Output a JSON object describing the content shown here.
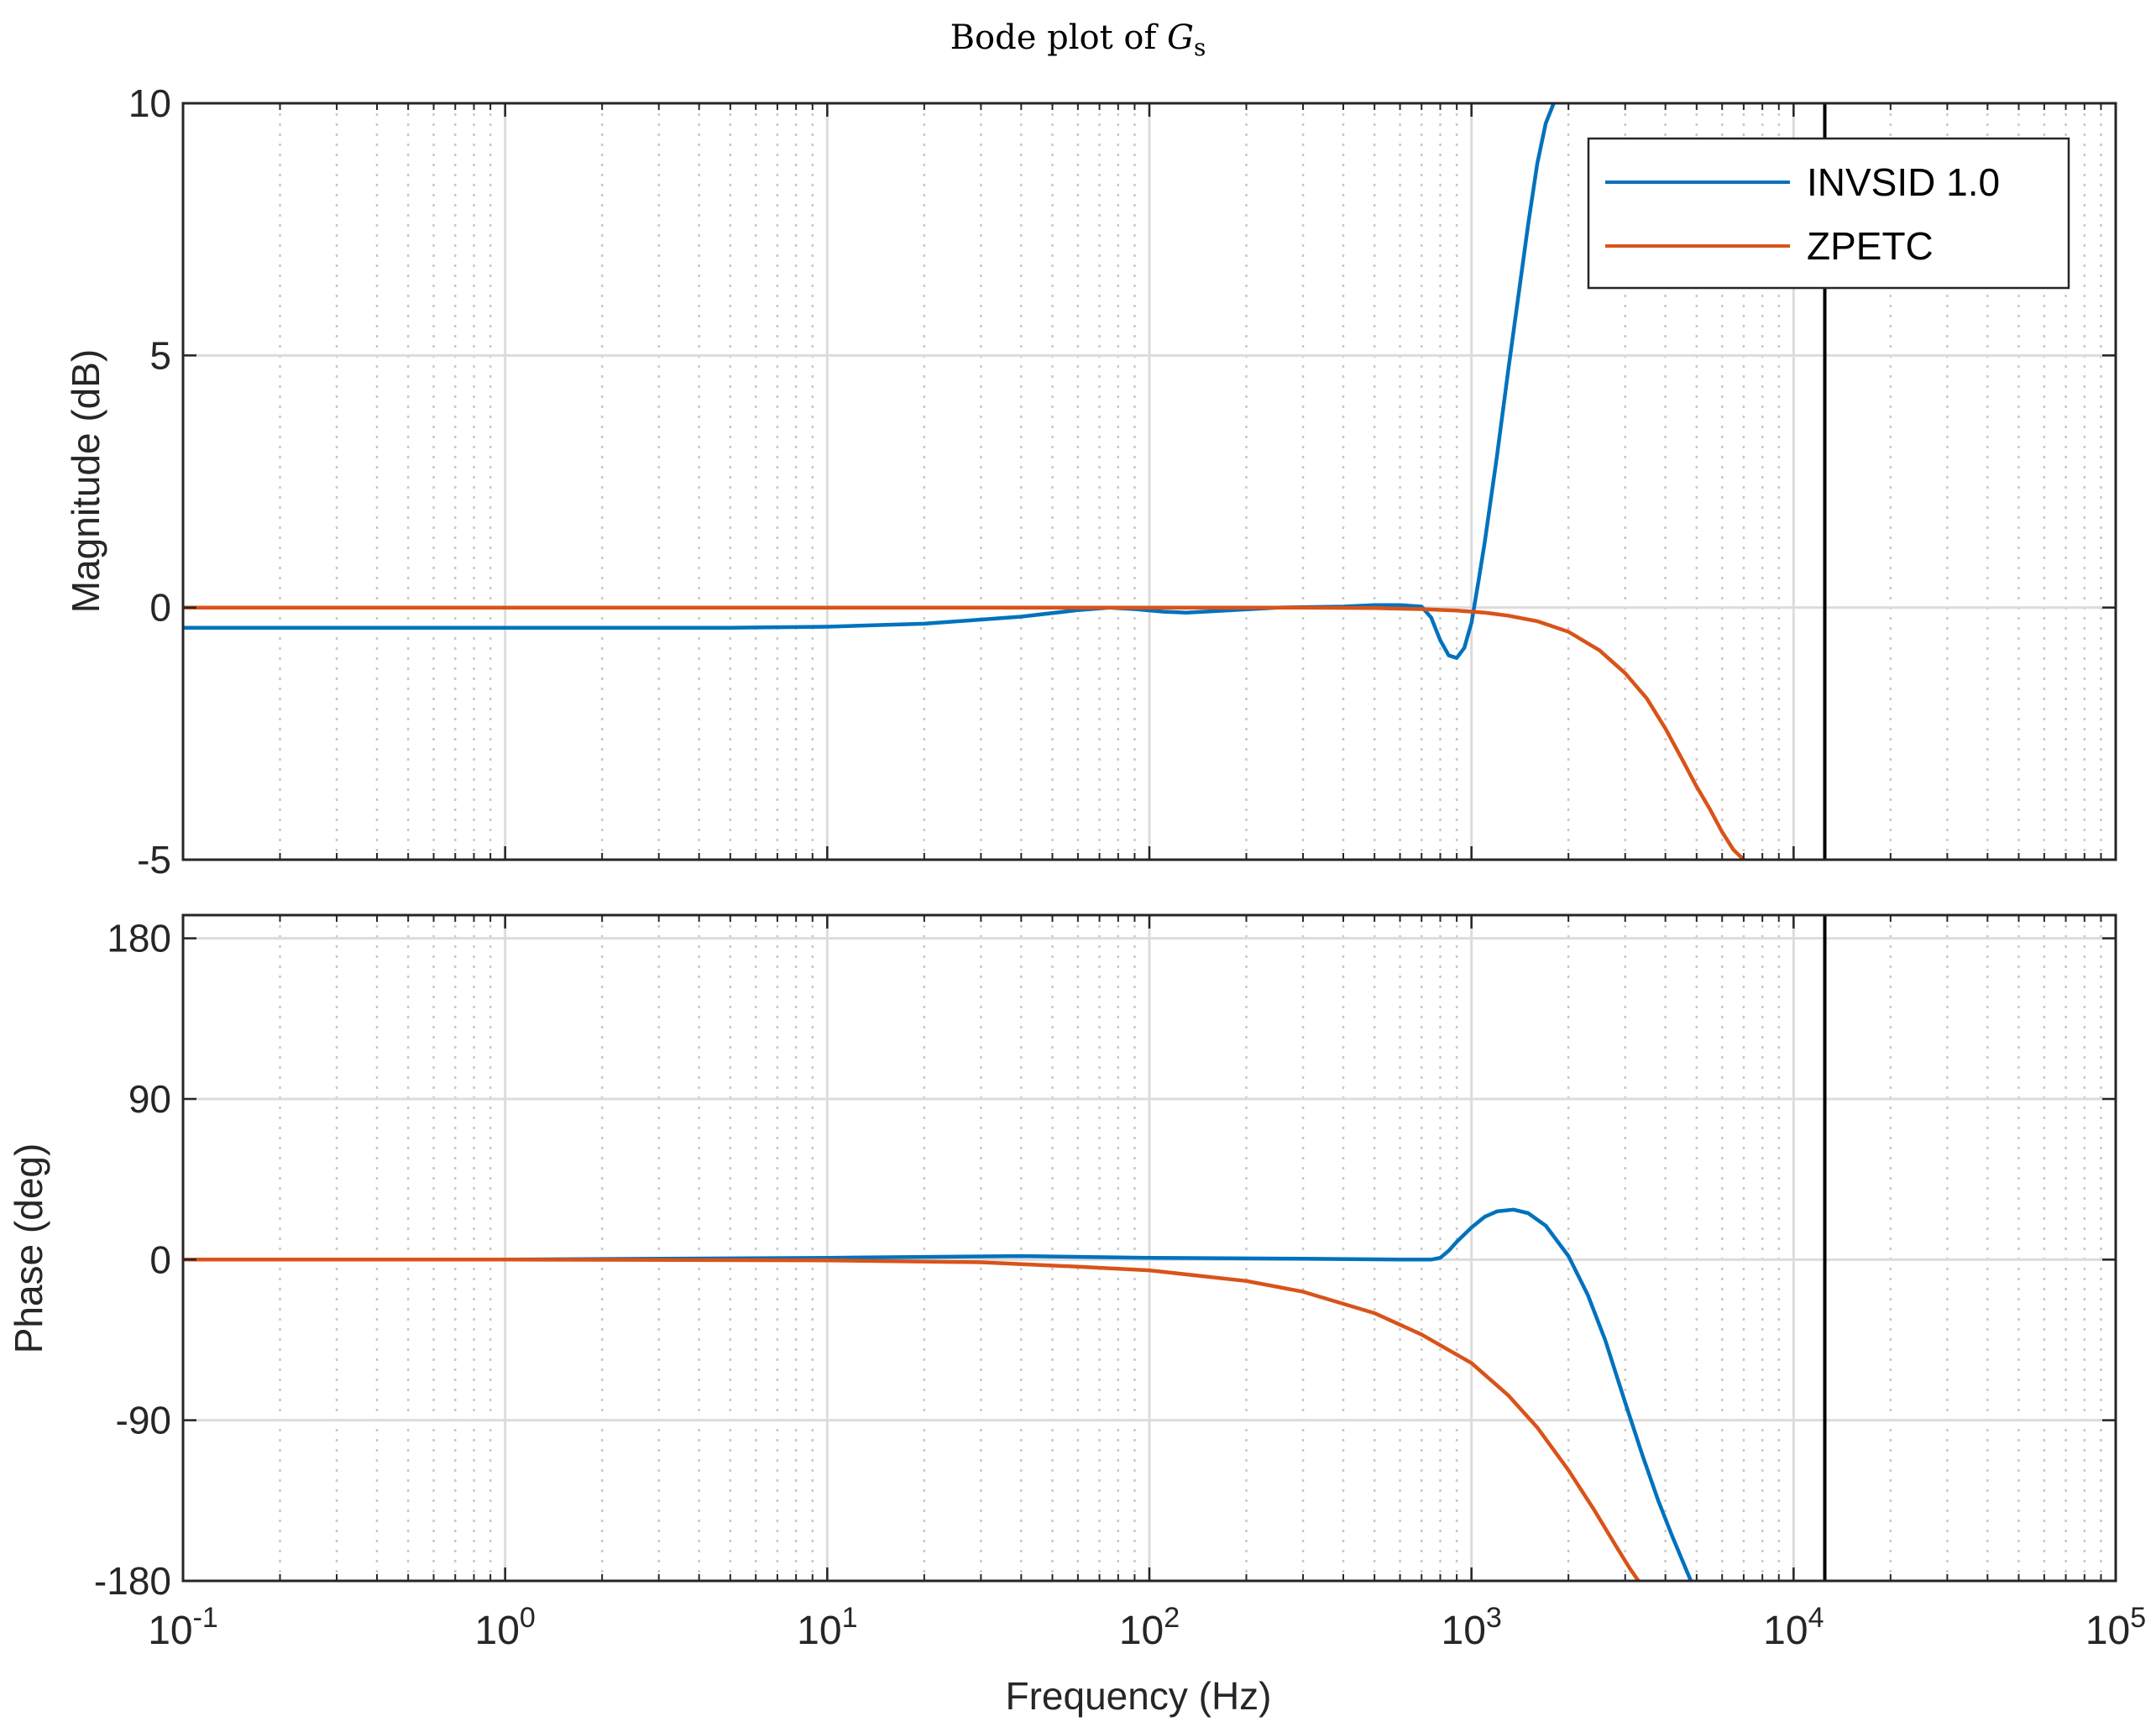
{
  "chart_data": {
    "type": "line",
    "title_prefix": "Bode plot of ",
    "title_symbol": "G",
    "title_subscript": "s",
    "xlabel": "Frequency  (Hz)",
    "xscale": "log",
    "xlim": [
      0.1,
      100000
    ],
    "xticks": [
      {
        "base": "10",
        "exp": "-1"
      },
      {
        "base": "10",
        "exp": "0"
      },
      {
        "base": "10",
        "exp": "1"
      },
      {
        "base": "10",
        "exp": "2"
      },
      {
        "base": "10",
        "exp": "3"
      },
      {
        "base": "10",
        "exp": "4"
      },
      {
        "base": "10",
        "exp": "5"
      }
    ],
    "nyquist_marker_hz": 12500,
    "legend": {
      "location": "top-right",
      "entries": [
        {
          "label": "INVSID 1.0",
          "color": "#0072BD"
        },
        {
          "label": "ZPETC",
          "color": "#D95319"
        }
      ]
    },
    "panels": [
      {
        "name": "magnitude",
        "ylabel": "Magnitude (dB)",
        "ylim": [
          -5,
          10
        ],
        "yticks": [
          -5,
          0,
          5,
          10
        ],
        "ytick_labels": [
          "-5",
          "0",
          "5",
          "10"
        ],
        "series": [
          {
            "name": "INVSID 1.0",
            "color": "#0072BD",
            "x": [
              0.1,
              1,
              5,
              10,
              20,
              40,
              60,
              75,
              90,
              110,
              130,
              160,
              250,
              400,
              500,
              600,
              700,
              750,
              800,
              850,
              900,
              950,
              1000,
              1050,
              1100,
              1200,
              1300,
              1400,
              1500,
              1600,
              1700,
              1800
            ],
            "y": [
              -0.4,
              -0.4,
              -0.4,
              -0.38,
              -0.32,
              -0.18,
              -0.05,
              0.0,
              -0.03,
              -0.08,
              -0.1,
              -0.07,
              0.0,
              0.02,
              0.05,
              0.05,
              0.02,
              -0.2,
              -0.65,
              -0.95,
              -1.0,
              -0.8,
              -0.3,
              0.5,
              1.3,
              3.0,
              4.7,
              6.2,
              7.6,
              8.8,
              9.6,
              10.0
            ]
          },
          {
            "name": "ZPETC",
            "color": "#D95319",
            "x": [
              0.1,
              10,
              100,
              300,
              500,
              700,
              900,
              1100,
              1300,
              1600,
              2000,
              2500,
              3000,
              3500,
              4000,
              4500,
              5000,
              5500,
              6000,
              6500,
              7000
            ],
            "y": [
              0,
              0,
              0,
              0,
              -0.01,
              -0.03,
              -0.06,
              -0.1,
              -0.16,
              -0.27,
              -0.48,
              -0.85,
              -1.3,
              -1.8,
              -2.4,
              -3.0,
              -3.55,
              -4.0,
              -4.45,
              -4.8,
              -5.0
            ]
          }
        ]
      },
      {
        "name": "phase",
        "ylabel": "Phase (deg)",
        "ylim": [
          -180,
          193
        ],
        "yticks": [
          -180,
          -90,
          0,
          90,
          180
        ],
        "ytick_labels": [
          "-180",
          "-90",
          "0",
          "90",
          "180"
        ],
        "series": [
          {
            "name": "INVSID 1.0",
            "color": "#0072BD",
            "x": [
              0.1,
              1,
              10,
              40,
              100,
              300,
              600,
              750,
              800,
              850,
              900,
              1000,
              1100,
              1200,
              1350,
              1500,
              1700,
              2000,
              2300,
              2600,
              3000,
              3400,
              3800,
              4200,
              4600,
              4800
            ],
            "y": [
              0,
              0,
              1,
              2,
              1,
              0.5,
              0,
              0,
              1,
              5,
              10,
              18,
              24,
              27,
              28,
              26,
              19,
              2,
              -20,
              -45,
              -80,
              -110,
              -135,
              -155,
              -172,
              -180
            ]
          },
          {
            "name": "ZPETC",
            "color": "#D95319",
            "x": [
              0.1,
              1,
              10,
              30,
              60,
              100,
              200,
              300,
              500,
              700,
              1000,
              1300,
              1600,
              2000,
              2400,
              2800,
              3100,
              3300
            ],
            "y": [
              0,
              0,
              -0.4,
              -1.5,
              -4,
              -6,
              -12,
              -18,
              -30,
              -42,
              -58,
              -76,
              -94,
              -118,
              -140,
              -160,
              -173,
              -180
            ]
          }
        ]
      }
    ]
  }
}
